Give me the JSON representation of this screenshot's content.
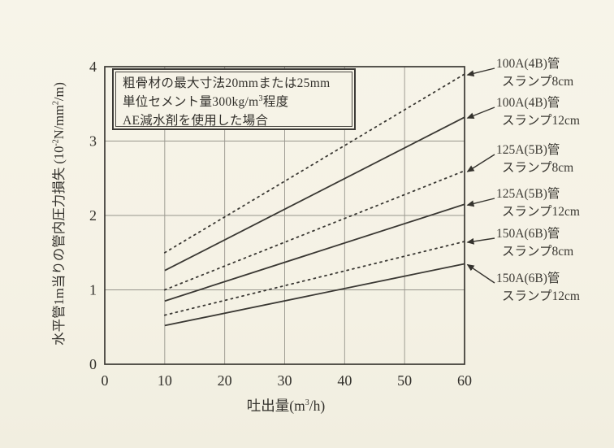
{
  "chart_data": {
    "type": "line",
    "title": "",
    "xlabel_parts": [
      {
        "t": "吐出量(m"
      },
      {
        "t": "3",
        "sup": true
      },
      {
        "t": "/h)"
      }
    ],
    "ylabel_parts": [
      {
        "t": "水平管1m当りの管内圧力損失 (10"
      },
      {
        "t": "-2",
        "sup": true
      },
      {
        "t": "N/mm"
      },
      {
        "t": "2",
        "sup": true
      },
      {
        "t": "/m)"
      }
    ],
    "xlim": [
      0,
      60
    ],
    "ylim": [
      0,
      4
    ],
    "xticks": [
      "0",
      "10",
      "20",
      "30",
      "40",
      "50",
      "60"
    ],
    "yticks": [
      "0",
      "1",
      "2",
      "3",
      "4"
    ],
    "grid": true,
    "legend_position": "right-outside-with-arrows",
    "annotation_box_lines": [
      [
        {
          "t": "粗骨材の最大寸法20mmまたは25mm"
        }
      ],
      [
        {
          "t": "単位セメント量300kg/m"
        },
        {
          "t": "3",
          "sup": true
        },
        {
          "t": "程度"
        }
      ],
      [
        {
          "t": "AE減水剤を使用した場合"
        }
      ]
    ],
    "series": [
      {
        "name": "100A(4B)管 スランプ8cm",
        "label_lines": [
          "100A(4B)管",
          "スランプ8cm"
        ],
        "style": "dotted",
        "x": [
          10,
          60
        ],
        "values": [
          1.5,
          3.9
        ]
      },
      {
        "name": "100A(4B)管 スランプ12cm",
        "label_lines": [
          "100A(4B)管",
          "スランプ12cm"
        ],
        "style": "solid",
        "x": [
          10,
          60
        ],
        "values": [
          1.26,
          3.32
        ]
      },
      {
        "name": "125A(5B)管 スランプ8cm",
        "label_lines": [
          "125A(5B)管",
          "スランプ8cm"
        ],
        "style": "dotted",
        "x": [
          10,
          60
        ],
        "values": [
          1.0,
          2.6
        ]
      },
      {
        "name": "125A(5B)管 スランプ12cm",
        "label_lines": [
          "125A(5B)管",
          "スランプ12cm"
        ],
        "style": "solid",
        "x": [
          10,
          60
        ],
        "values": [
          0.85,
          2.15
        ]
      },
      {
        "name": "150A(6B)管 スランプ8cm",
        "label_lines": [
          "150A(6B)管",
          "スランプ8cm"
        ],
        "style": "dotted",
        "x": [
          10,
          60
        ],
        "values": [
          0.66,
          1.65
        ]
      },
      {
        "name": "150A(6B)管 スランプ12cm",
        "label_lines": [
          "150A(6B)管",
          "スランプ12cm"
        ],
        "style": "solid",
        "x": [
          10,
          60
        ],
        "values": [
          0.52,
          1.35
        ]
      }
    ],
    "colors": {
      "background": "#f5f2e5",
      "frame": "#3a3833",
      "grid": "#97958c",
      "line": "#3a3833",
      "text": "#33312c"
    }
  }
}
